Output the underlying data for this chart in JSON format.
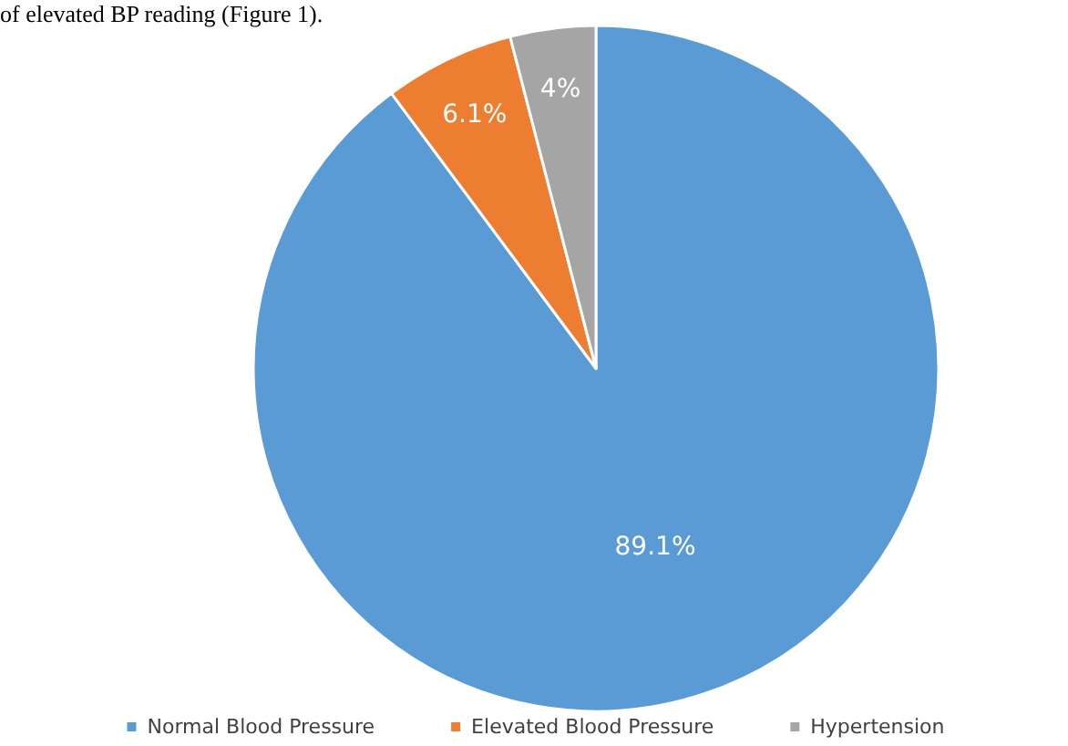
{
  "chart_data": {
    "type": "pie",
    "annotations": [
      "of elevated BP reading (Figure 1)."
    ],
    "categories": [
      "Normal Blood Pressure",
      "Elevated Blood Pressure",
      "Hypertension"
    ],
    "values": [
      89.1,
      6.1,
      4
    ],
    "value_labels": [
      "89.1%",
      "6.1%",
      "4%"
    ],
    "colors": [
      "#5b9bd5",
      "#ed7d31",
      "#a5a5a5"
    ],
    "legend": "bottom"
  }
}
